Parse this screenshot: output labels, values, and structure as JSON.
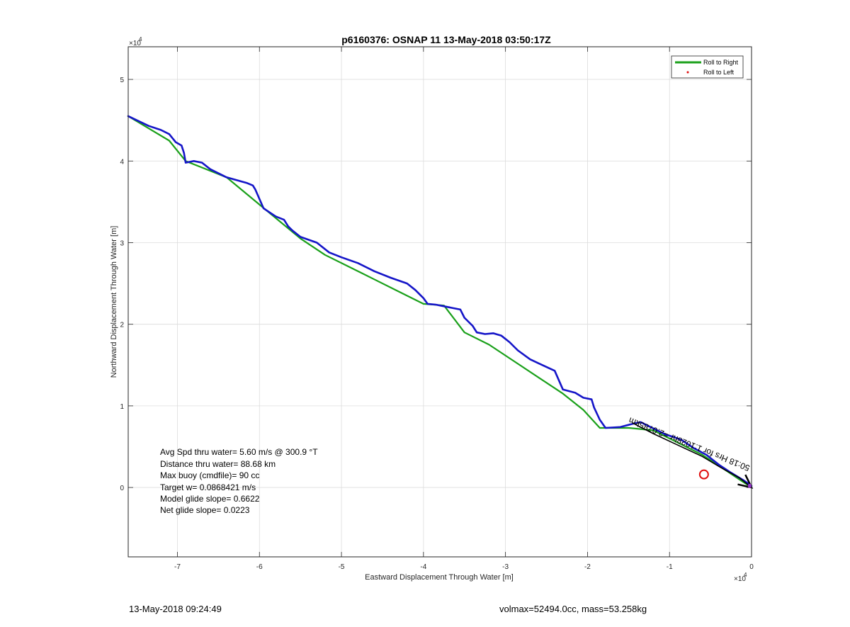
{
  "chart_data": {
    "type": "line",
    "title": "p6160376: OSNAP 11 13-May-2018 03:50:17Z",
    "xlabel": "Eastward Displacement Through Water [m]",
    "ylabel": "Northward Displacement Through Water [m]",
    "x_exponent_label": "×10",
    "x_exponent": "4",
    "y_exponent_label": "×10",
    "y_exponent": "4",
    "xlim": [
      -76000,
      0
    ],
    "ylim": [
      -8500,
      54000
    ],
    "xticks": [
      -70000,
      -60000,
      -50000,
      -40000,
      -30000,
      -20000,
      -10000,
      0
    ],
    "xtick_labels": [
      "-7",
      "-6",
      "-5",
      "-4",
      "-3",
      "-2",
      "-1",
      "0"
    ],
    "yticks": [
      0,
      10000,
      20000,
      30000,
      40000,
      50000
    ],
    "ytick_labels": [
      "0",
      "1",
      "2",
      "3",
      "4",
      "5"
    ],
    "grid": true,
    "legend_position": "top-right",
    "legend": [
      {
        "label": "Roll to Right",
        "color": "#1aa01a",
        "style": "line"
      },
      {
        "label": "Roll to Left",
        "color": "#e01010",
        "style": "dot"
      }
    ],
    "series": [
      {
        "name": "Roll to Right",
        "color": "#1aa01a",
        "x": [
          -76000,
          -73500,
          -71000,
          -69000,
          -67000,
          -64000,
          -61000,
          -58000,
          -55000,
          -52000,
          -49000,
          -46000,
          -43000,
          -40000,
          -37500,
          -35000,
          -32000,
          -29000,
          -26000,
          -23000,
          -20500,
          -18500,
          -15000,
          -12000,
          -9000,
          -6000,
          -3000,
          -1500,
          0
        ],
        "y": [
          45500,
          44000,
          42500,
          40000,
          39200,
          38000,
          35500,
          33000,
          30500,
          28500,
          27000,
          25500,
          24000,
          22500,
          22300,
          19000,
          17500,
          15500,
          13500,
          11500,
          9500,
          7300,
          7300,
          7000,
          5500,
          4000,
          2000,
          1000,
          0
        ]
      },
      {
        "name": "",
        "color": "#1515c8",
        "x": [
          -76000,
          -73500,
          -72000,
          -71000,
          -70200,
          -69500,
          -69200,
          -69000,
          -68000,
          -67000,
          -66000,
          -64000,
          -61500,
          -60800,
          -60500,
          -59500,
          -58000,
          -57000,
          -56500,
          -56000,
          -55000,
          -53000,
          -51500,
          -50000,
          -48000,
          -46000,
          -44000,
          -42000,
          -41000,
          -40000,
          -39500,
          -38500,
          -37500,
          -36500,
          -35500,
          -35000,
          -34000,
          -33500,
          -32500,
          -31500,
          -30500,
          -29500,
          -28500,
          -27000,
          -25500,
          -24000,
          -23000,
          -21500,
          -20500,
          -19500,
          -19200,
          -18500,
          -17800,
          -16000,
          -14500,
          -13500,
          -12500,
          -11500,
          -10500,
          -9500,
          -8500,
          -7000,
          -5500,
          -4000,
          -2500,
          -1000,
          0
        ],
        "y": [
          45500,
          44300,
          43800,
          43300,
          42300,
          41900,
          41000,
          39800,
          40000,
          39800,
          39000,
          38000,
          37300,
          37000,
          36500,
          34200,
          33200,
          32800,
          32000,
          31500,
          30700,
          30000,
          28800,
          28200,
          27500,
          26500,
          25700,
          25000,
          24200,
          23200,
          22500,
          22400,
          22200,
          22000,
          21800,
          20800,
          19800,
          19000,
          18800,
          18900,
          18600,
          17800,
          16800,
          15700,
          15000,
          14300,
          12000,
          11600,
          11000,
          10800,
          9800,
          8300,
          7300,
          7400,
          7800,
          8000,
          7500,
          7000,
          6500,
          6200,
          5800,
          4800,
          4000,
          2800,
          1800,
          900,
          200
        ]
      },
      {
        "name": "",
        "color": "#000000",
        "x": [
          -14500,
          -12000,
          -9000,
          -6000,
          -3500,
          -1500,
          0
        ],
        "y": [
          7900,
          6600,
          5200,
          3800,
          2300,
          1200,
          0
        ]
      }
    ],
    "markers": [
      {
        "type": "circle",
        "x": -5800,
        "y": 1600,
        "color": "#e01010"
      },
      {
        "type": "dot",
        "x": -200,
        "y": 200,
        "color": "#9933cc"
      }
    ],
    "annotations": [
      {
        "text": "50:18 Hrs for 1:1028hr =2.0785km",
        "x": -14800,
        "y": 8600,
        "rotation": 22,
        "color": "#000000"
      }
    ],
    "stats_text": [
      "Avg Spd thru water=  5.60 m/s @ 300.9 °T",
      "Distance thru water= 88.68 km",
      "Max buoy (cmdfile)= 90 cc",
      "Target w= 0.0868421 m/s",
      "Model glide slope= 0.6622",
      "Net glide slope= 0.0223"
    ]
  },
  "footer": {
    "left": "13-May-2018 09:24:49",
    "right": "volmax=52494.0cc, mass=53.258kg"
  }
}
